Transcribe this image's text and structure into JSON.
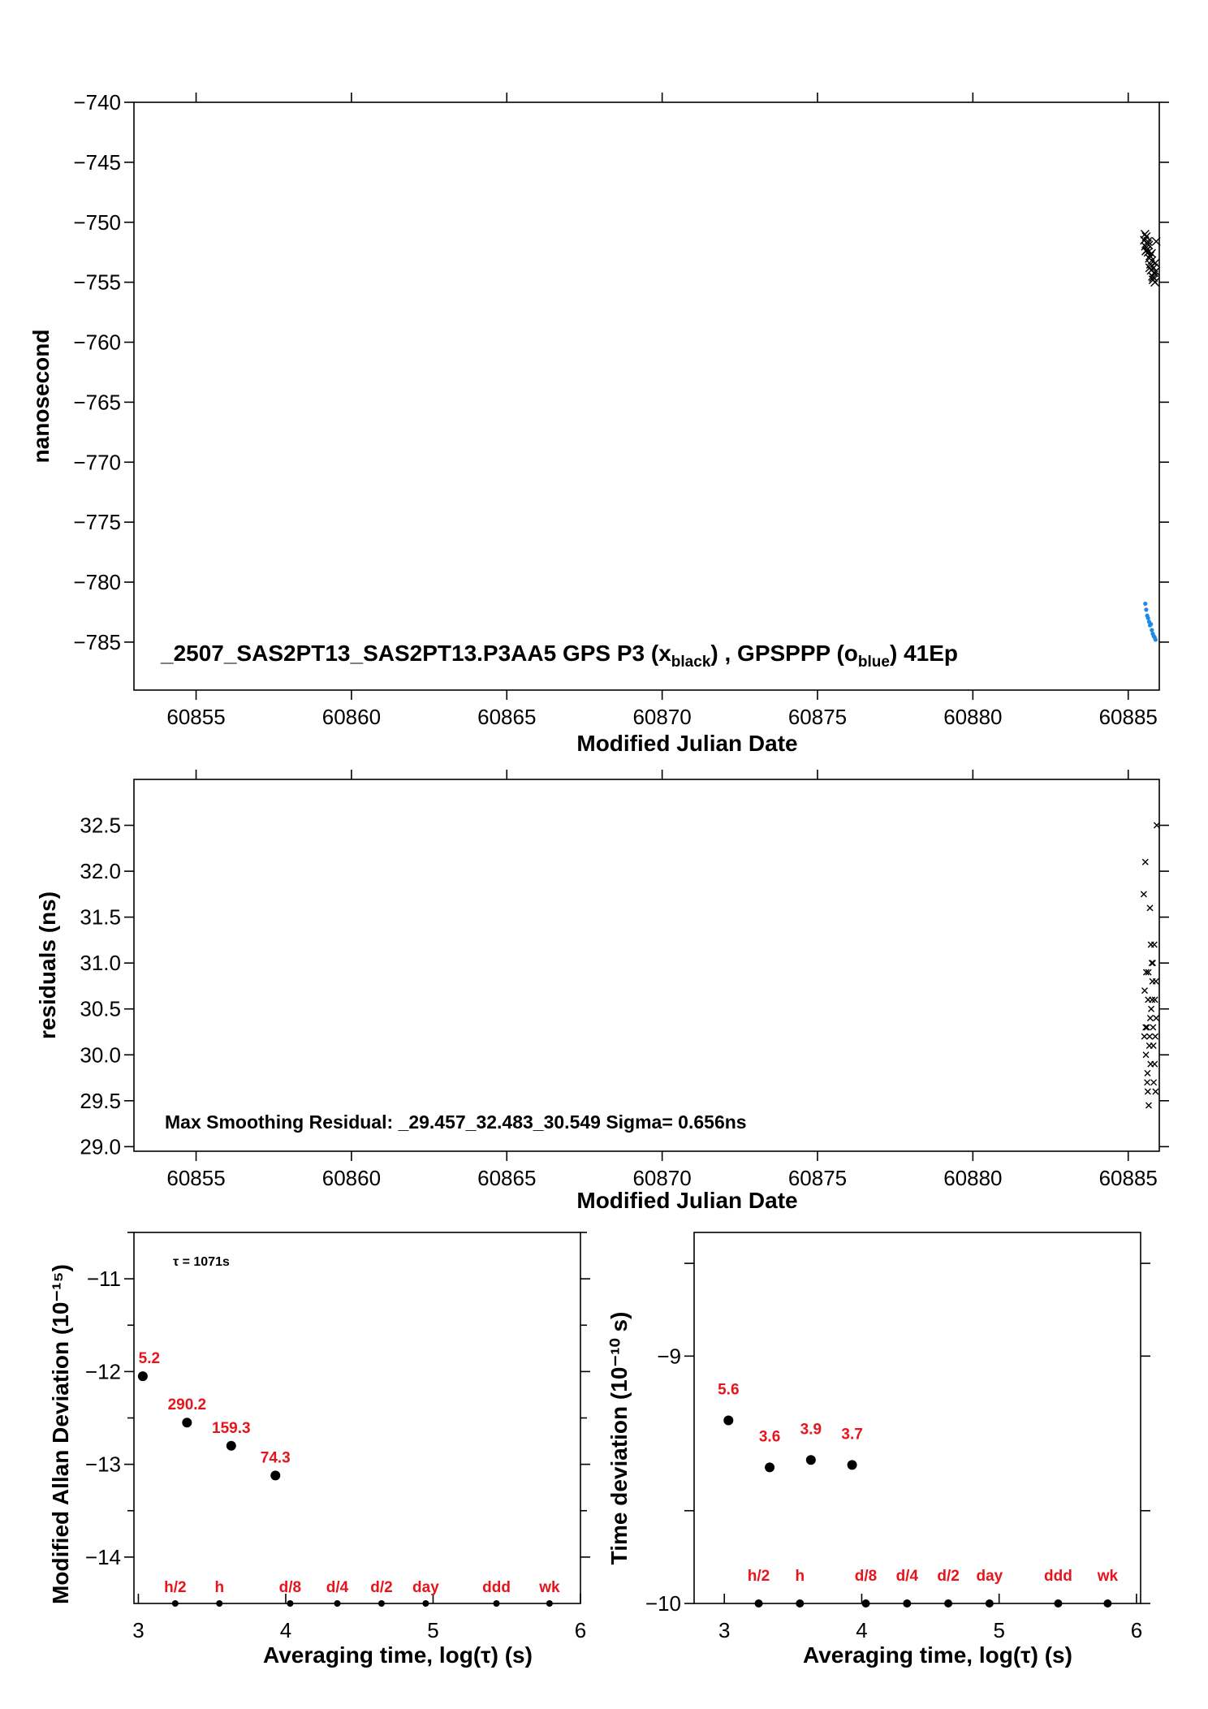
{
  "chart_data": [
    {
      "type": "scatter",
      "xlabel": "Modified Julian Date",
      "ylabel": "nanosecond",
      "xlim": [
        60853.0,
        60886.0
      ],
      "ylim": [
        -789.0,
        -740.0
      ],
      "xticks": [
        60855,
        60860,
        60865,
        60870,
        60875,
        60880,
        60885
      ],
      "yticks": [
        -740,
        -745,
        -750,
        -755,
        -760,
        -765,
        -770,
        -775,
        -780,
        -785
      ],
      "annotation": {
        "prefix": "_2507_SAS2PT13_SAS2PT13.P3AA5     GPS P3 (x",
        "sub1": "black",
        "mid": ") ,  GPSPPP (o",
        "sub2": "blue",
        "suffix": ")  41Ep"
      },
      "series": [
        {
          "marker": "x",
          "color": "#000000",
          "x": [
            60885.52,
            60885.55,
            60885.58,
            60885.6,
            60885.62,
            60885.64,
            60885.66,
            60885.68,
            60885.7,
            60885.72,
            60885.74,
            60885.76,
            60885.78,
            60885.8,
            60885.82,
            60885.84,
            60885.86,
            60885.88,
            60885.54,
            60885.57,
            60885.63,
            60885.69,
            60885.75,
            60885.81,
            60885.87,
            60885.9
          ],
          "y": [
            -751.5,
            -752.0,
            -751.2,
            -752.3,
            -751.8,
            -752.5,
            -751.9,
            -753.0,
            -752.8,
            -753.5,
            -754.0,
            -753.2,
            -754.5,
            -754.8,
            -753.8,
            -754.2,
            -755.0,
            -754.1,
            -751.0,
            -752.4,
            -751.6,
            -753.8,
            -752.6,
            -754.6,
            -753.4,
            -751.6
          ]
        },
        {
          "marker": "o",
          "color": "#1e8ae6",
          "x": [
            60885.55,
            60885.58,
            60885.61,
            60885.64,
            60885.67,
            60885.7,
            60885.73,
            60885.76,
            60885.79,
            60885.82,
            60885.85,
            60885.88
          ],
          "y": [
            -781.8,
            -782.3,
            -782.8,
            -783.0,
            -783.3,
            -783.6,
            -783.5,
            -784.0,
            -784.3,
            -784.5,
            -784.6,
            -784.8
          ]
        }
      ]
    },
    {
      "type": "scatter",
      "xlabel": "Modified Julian Date",
      "ylabel": "residuals (ns)",
      "xlim": [
        60853.0,
        60886.0
      ],
      "ylim": [
        28.95,
        33.0
      ],
      "xticks": [
        60855,
        60860,
        60865,
        60870,
        60875,
        60880,
        60885
      ],
      "yticks": [
        29.0,
        29.5,
        30.0,
        30.5,
        31.0,
        31.5,
        32.0,
        32.5
      ],
      "ytick_labels": [
        "29.0",
        "29.5",
        "30.0",
        "30.5",
        "31.0",
        "31.5",
        "32.0",
        "32.5"
      ],
      "annotation": "Max Smoothing Residual: _29.457_32.483_30.549  Sigma= 0.656ns",
      "series": [
        {
          "marker": "x",
          "color": "#000000",
          "x": [
            60885.5,
            60885.52,
            60885.55,
            60885.58,
            60885.6,
            60885.62,
            60885.64,
            60885.66,
            60885.68,
            60885.7,
            60885.72,
            60885.74,
            60885.76,
            60885.78,
            60885.8,
            60885.82,
            60885.84,
            60885.86,
            60885.88,
            60885.9,
            60885.53,
            60885.57,
            60885.61,
            60885.65,
            60885.69,
            60885.73,
            60885.77,
            60885.81,
            60885.85,
            60885.89,
            60885.56,
            60885.63,
            60885.71,
            60885.79,
            60885.87,
            60885.92
          ],
          "y": [
            31.75,
            30.2,
            32.1,
            30.9,
            30.3,
            29.8,
            30.6,
            29.45,
            30.1,
            31.6,
            29.9,
            30.5,
            31.0,
            30.8,
            30.3,
            29.7,
            31.2,
            30.6,
            29.6,
            30.4,
            30.7,
            30.0,
            29.7,
            30.9,
            30.2,
            31.2,
            30.6,
            30.1,
            29.9,
            30.8,
            30.3,
            29.6,
            30.4,
            31.0,
            30.2,
            32.5
          ]
        }
      ]
    },
    {
      "type": "scatter",
      "xlabel": "Averaging time, log(τ) (s)",
      "ylabel": "Modified Allan Deviation (10⁻¹⁵)",
      "xlim": [
        2.97,
        6.0
      ],
      "ylim": [
        -14.5,
        -10.5
      ],
      "xticks": [
        3,
        4,
        5,
        6
      ],
      "yticks": [
        -11,
        -12,
        -13,
        -14
      ],
      "annotation": "τ = 1071s",
      "points": {
        "x": [
          3.03,
          3.33,
          3.63,
          3.93
        ],
        "y": [
          -12.05,
          -12.55,
          -12.8,
          -13.12
        ],
        "labels": [
          "5.2",
          "290.2",
          "159.3",
          "74.3"
        ]
      },
      "markers": {
        "x": [
          3.25,
          3.55,
          4.03,
          4.35,
          4.65,
          4.95,
          5.43,
          5.79
        ],
        "labels": [
          "h/2",
          "h",
          "d/8",
          "d/4",
          "d/2",
          "day",
          "ddd",
          "wk"
        ]
      }
    },
    {
      "type": "scatter",
      "xlabel": "Averaging time, log(τ) (s)",
      "ylabel": "Time deviation (10⁻¹⁰ s)",
      "xlim": [
        2.78,
        6.03
      ],
      "ylim": [
        -10.0,
        -8.5
      ],
      "xticks": [
        3,
        4,
        5,
        6
      ],
      "yticks": [
        -9,
        -10
      ],
      "points": {
        "x": [
          3.03,
          3.33,
          3.63,
          3.93
        ],
        "y": [
          -9.26,
          -9.45,
          -9.42,
          -9.44
        ],
        "labels": [
          "5.6",
          "3.6",
          "3.9",
          "3.7"
        ]
      },
      "markers": {
        "x": [
          3.25,
          3.55,
          4.03,
          4.33,
          4.63,
          4.93,
          5.43,
          5.79
        ],
        "labels": [
          "h/2",
          "h",
          "d/8",
          "d/4",
          "d/2",
          "day",
          "ddd",
          "wk"
        ]
      }
    }
  ]
}
